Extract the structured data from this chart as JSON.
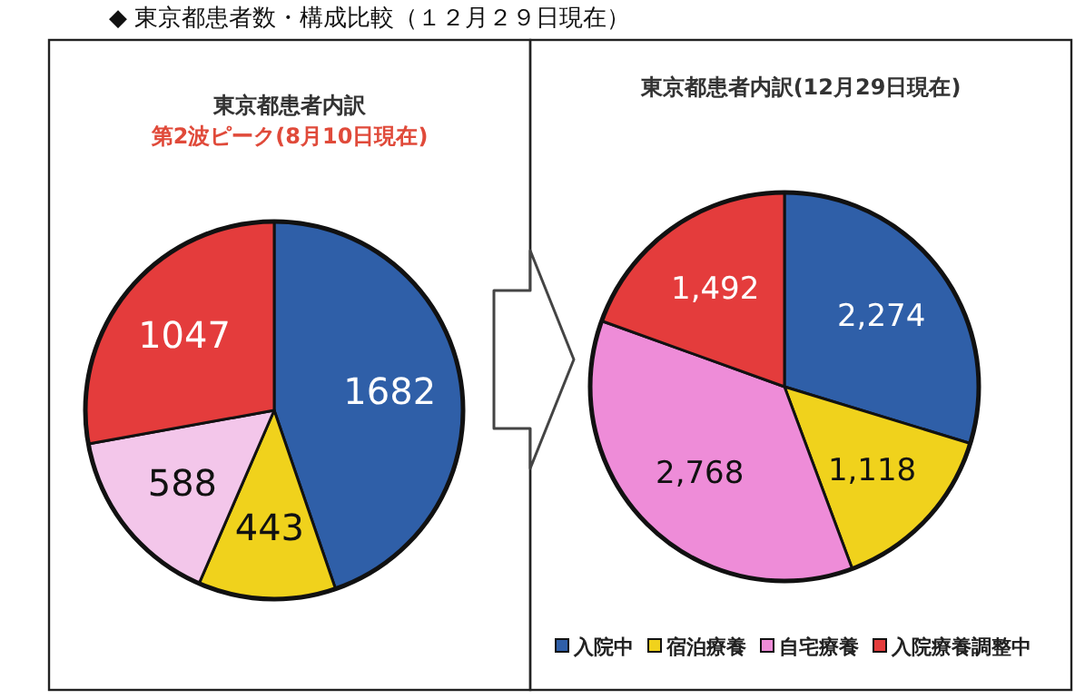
{
  "chart_data": [
    {
      "type": "pie",
      "title": "東京都患者内訳",
      "subtitle": "第2波ピーク(8月10日現在)",
      "annotations": [
        "◆ 東京都患者数・構成比較（１２月２９日現在）"
      ],
      "categories": [
        null,
        null,
        null,
        null
      ],
      "values": [
        1682,
        443,
        588,
        1047
      ],
      "colors": [
        "#2f5fa8",
        "#f0d21c",
        "#f3c6ea",
        "#e43c3c"
      ],
      "data_labels": true
    },
    {
      "type": "pie",
      "title": "東京都患者内訳(12月29日現在)",
      "categories": [
        "入院中",
        "宿泊療養",
        "自宅療養",
        "入院療養調整中"
      ],
      "values": [
        2274,
        1118,
        2768,
        1492
      ],
      "value_labels": [
        "2,274",
        "1,118",
        "2,768",
        "1,492"
      ],
      "colors": [
        "#2f5fa8",
        "#f0d21c",
        "#ee8cd8",
        "#e43c3c"
      ],
      "legend": "bottom"
    }
  ]
}
